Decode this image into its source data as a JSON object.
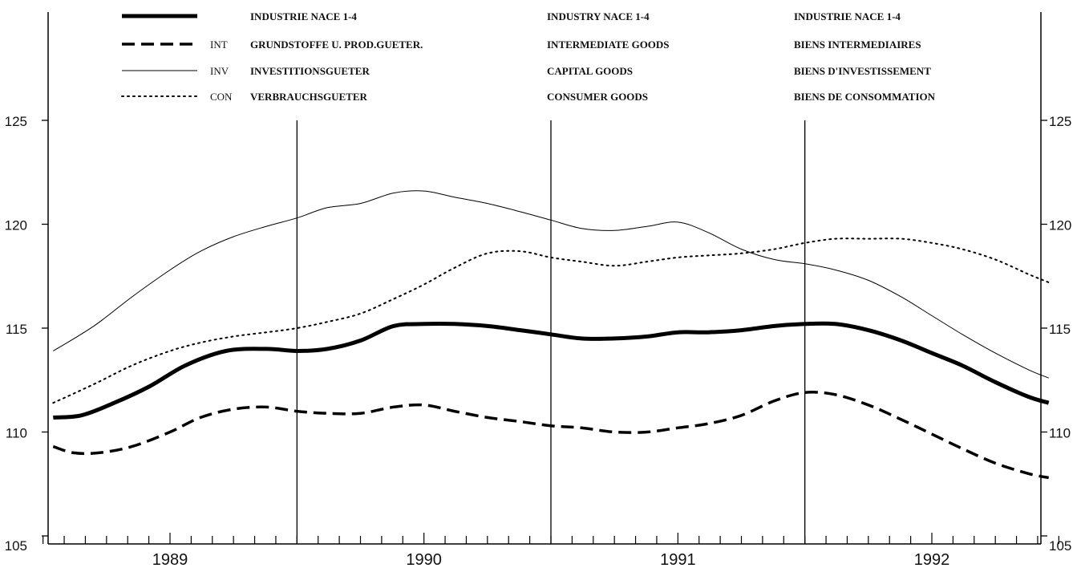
{
  "chart_data": {
    "type": "line",
    "ylim": [
      105,
      127
    ],
    "xlim": [
      1988.5,
      1992.5
    ],
    "y_ticks": [
      "105",
      "110",
      "115",
      "120",
      "125"
    ],
    "x_year_labels": [
      "1989",
      "1990",
      "1991",
      "1992"
    ],
    "grid": false,
    "legend_placement": "top",
    "legend": [
      {
        "code": "",
        "de": "INDUSTRIE NACE 1-4",
        "en": "INDUSTRY NACE 1-4",
        "fr": "INDUSTRIE NACE 1-4",
        "style": "thick"
      },
      {
        "code": "INT",
        "de": "GRUNDSTOFFE U. PROD.GUETER.",
        "en": "INTERMEDIATE GOODS",
        "fr": "BIENS INTERMEDIAIRES",
        "style": "dashed"
      },
      {
        "code": "INV",
        "de": "INVESTITIONSGUETER",
        "en": "CAPITAL GOODS",
        "fr": "BIENS D'INVESTISSEMENT",
        "style": "thin"
      },
      {
        "code": "CON",
        "de": "VERBRAUCHSGUETER",
        "en": "CONSUMER GOODS",
        "fr": "BIENS DE CONSOMMATION",
        "style": "dotted"
      }
    ],
    "series": [
      {
        "style": "thick",
        "color": "#000000",
        "x": [
          1988.54,
          1988.65,
          1988.78,
          1988.92,
          1989.06,
          1989.22,
          1989.38,
          1989.5,
          1989.62,
          1989.75,
          1989.88,
          1990.0,
          1990.12,
          1990.25,
          1990.38,
          1990.5,
          1990.62,
          1990.75,
          1990.88,
          1991.0,
          1991.12,
          1991.25,
          1991.38,
          1991.5,
          1991.62,
          1991.75,
          1991.88,
          1992.0,
          1992.12,
          1992.25,
          1992.38,
          1992.46
        ],
        "y": [
          110.7,
          110.8,
          111.4,
          112.2,
          113.2,
          113.9,
          114.0,
          113.9,
          114.0,
          114.4,
          115.1,
          115.2,
          115.2,
          115.1,
          114.9,
          114.7,
          114.5,
          114.5,
          114.6,
          114.8,
          114.8,
          114.9,
          115.1,
          115.2,
          115.2,
          114.9,
          114.4,
          113.8,
          113.2,
          112.4,
          111.7,
          111.4
        ]
      },
      {
        "style": "dashed",
        "color": "#000000",
        "x": [
          1988.54,
          1988.62,
          1988.72,
          1988.85,
          1989.0,
          1989.12,
          1989.25,
          1989.38,
          1989.5,
          1989.62,
          1989.75,
          1989.88,
          1990.0,
          1990.12,
          1990.25,
          1990.38,
          1990.5,
          1990.62,
          1990.75,
          1990.88,
          1991.0,
          1991.12,
          1991.25,
          1991.38,
          1991.5,
          1991.62,
          1991.75,
          1991.88,
          1992.0,
          1992.12,
          1992.25,
          1992.38,
          1992.46
        ],
        "y": [
          109.3,
          109.0,
          109.0,
          109.3,
          110.0,
          110.7,
          111.1,
          111.2,
          111.0,
          110.9,
          110.9,
          111.2,
          111.3,
          111.0,
          110.7,
          110.5,
          110.3,
          110.2,
          110.0,
          110.0,
          110.2,
          110.4,
          110.8,
          111.5,
          111.9,
          111.8,
          111.3,
          110.6,
          109.9,
          109.2,
          108.5,
          108.0,
          107.8
        ]
      },
      {
        "style": "thin",
        "color": "#000000",
        "x": [
          1988.54,
          1988.7,
          1988.85,
          1989.0,
          1989.12,
          1989.25,
          1989.38,
          1989.5,
          1989.62,
          1989.75,
          1989.88,
          1990.0,
          1990.12,
          1990.25,
          1990.38,
          1990.5,
          1990.62,
          1990.75,
          1990.88,
          1991.0,
          1991.12,
          1991.25,
          1991.38,
          1991.5,
          1991.62,
          1991.75,
          1991.88,
          1992.0,
          1992.12,
          1992.25,
          1992.38,
          1992.46
        ],
        "y": [
          113.9,
          115.1,
          116.5,
          117.8,
          118.7,
          119.4,
          119.9,
          120.3,
          120.8,
          121.0,
          121.5,
          121.6,
          121.3,
          121.0,
          120.6,
          120.2,
          119.8,
          119.7,
          119.9,
          120.1,
          119.6,
          118.8,
          118.3,
          118.1,
          117.8,
          117.3,
          116.5,
          115.6,
          114.7,
          113.8,
          113.0,
          112.6
        ]
      },
      {
        "style": "dotted",
        "color": "#000000",
        "x": [
          1988.54,
          1988.7,
          1988.85,
          1989.0,
          1989.12,
          1989.25,
          1989.38,
          1989.5,
          1989.62,
          1989.75,
          1989.88,
          1990.0,
          1990.12,
          1990.25,
          1990.38,
          1990.5,
          1990.62,
          1990.75,
          1990.88,
          1991.0,
          1991.12,
          1991.25,
          1991.38,
          1991.5,
          1991.62,
          1991.75,
          1991.88,
          1992.0,
          1992.12,
          1992.25,
          1992.38,
          1992.46
        ],
        "y": [
          111.4,
          112.3,
          113.2,
          113.9,
          114.3,
          114.6,
          114.8,
          115.0,
          115.3,
          115.7,
          116.4,
          117.1,
          117.9,
          118.6,
          118.7,
          118.4,
          118.2,
          118.0,
          118.2,
          118.4,
          118.5,
          118.6,
          118.8,
          119.1,
          119.3,
          119.3,
          119.3,
          119.1,
          118.8,
          118.3,
          117.6,
          117.2
        ]
      }
    ]
  }
}
